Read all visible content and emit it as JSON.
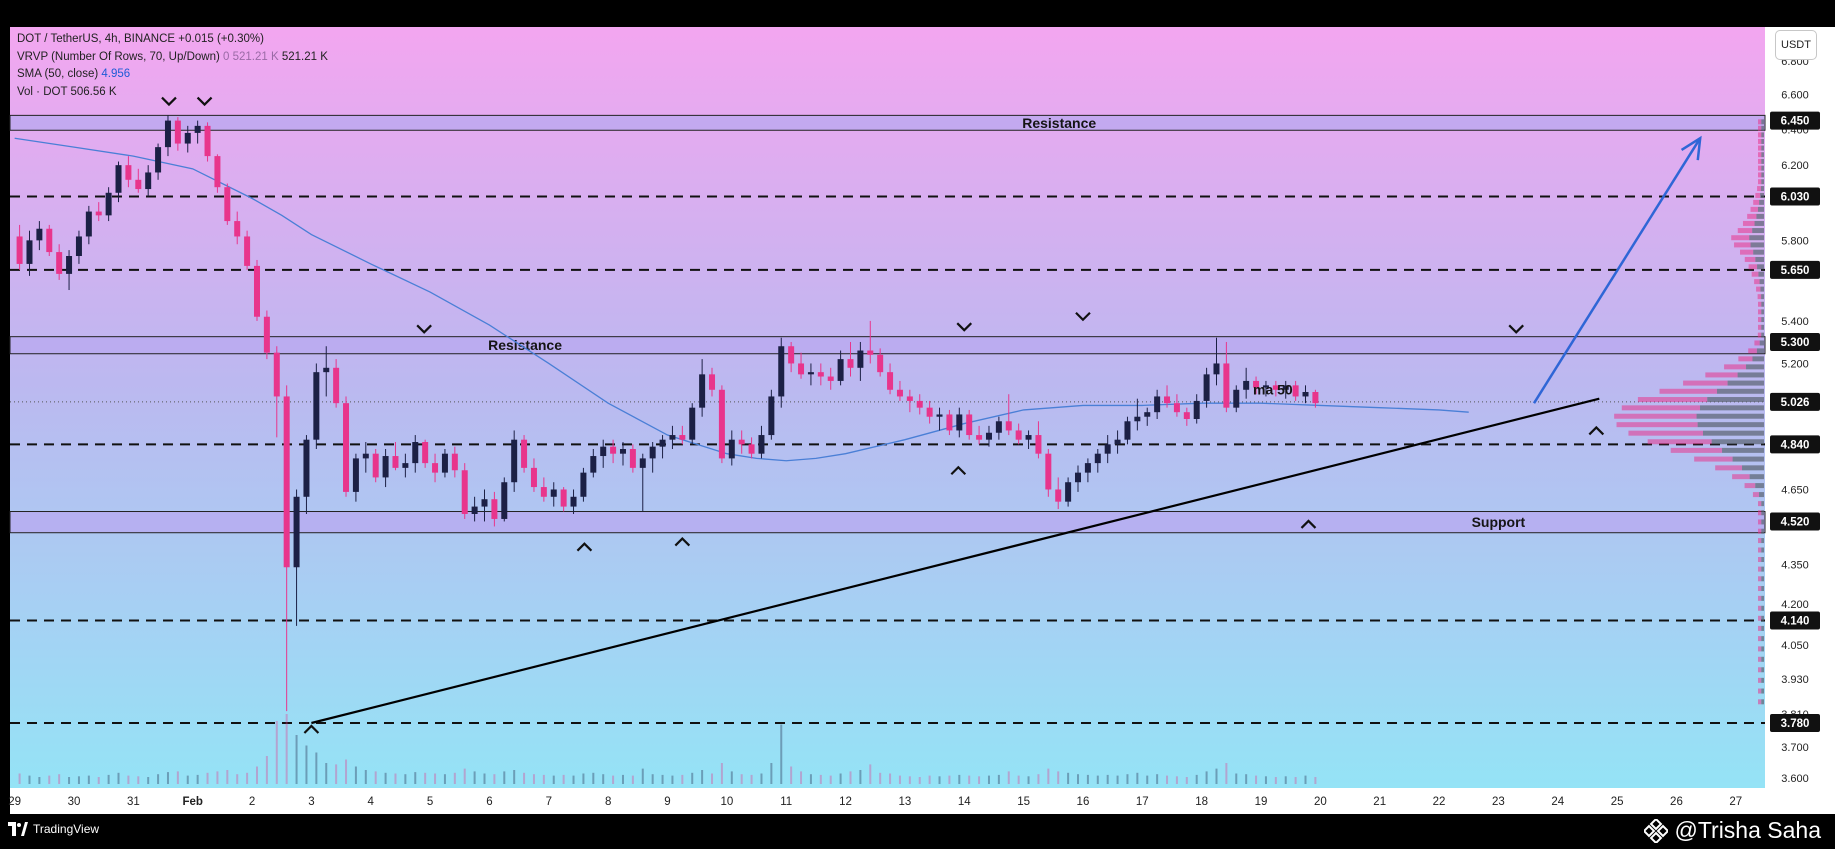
{
  "legend": {
    "line1": "DOT / TetherUS, 4h, BINANCE  +0.015 (+0.30%)",
    "vrvp_label": "VRVP (Number Of Rows, 70, Up/Down)",
    "vrvp_v1": "0",
    "vrvp_v2": "521.21 K",
    "vrvp_v3": "521.21 K",
    "sma_label": "SMA (50, close)",
    "sma_value": "4.956",
    "vol_label": "Vol · DOT",
    "vol_value": "506.56 K"
  },
  "currency_button": "USDT",
  "footer": {
    "brand": "TradingView",
    "author": "@Trisha Saha"
  },
  "colors": {
    "bull": "#1c2045",
    "bear": "#e8358c",
    "sma": "#4a7fd6",
    "trendline": "#000000",
    "zone_fill": "#b8a8f0",
    "arrow": "#2f66d6",
    "bg_top": "#f3a6f0",
    "bg_bottom": "#92e6f6"
  },
  "chart_data": {
    "type": "candlestick",
    "symbol": "DOT / TetherUS",
    "interval": "4h",
    "exchange": "BINANCE",
    "y_axis": {
      "min": 3.55,
      "max": 6.9,
      "ticks": [
        "6.800",
        "6.600",
        "6.400",
        "6.200",
        "5.800",
        "5.400",
        "5.200",
        "4.650",
        "4.350",
        "4.200",
        "4.050",
        "3.930",
        "3.810",
        "3.700",
        "3.600"
      ],
      "price_labels": [
        "6.450",
        "6.030",
        "5.650",
        "5.300",
        "5.026",
        "4.840",
        "4.520",
        "4.140",
        "3.780"
      ]
    },
    "x_axis": {
      "labels": [
        "29",
        "30",
        "31",
        "Feb",
        "2",
        "3",
        "4",
        "5",
        "6",
        "7",
        "8",
        "9",
        "10",
        "11",
        "12",
        "13",
        "14",
        "15",
        "16",
        "17",
        "18",
        "19",
        "20",
        "21",
        "22",
        "23",
        "24",
        "25",
        "26",
        "27"
      ],
      "label_day": [
        -1,
        0,
        1,
        2,
        3,
        4,
        5,
        6,
        7,
        8,
        9,
        10,
        11,
        12,
        13,
        14,
        15,
        16,
        17,
        18,
        19,
        20,
        21,
        22,
        23,
        24,
        25,
        26,
        27,
        28
      ]
    },
    "candles_per_day": 6,
    "first_candle_day": -1.0,
    "ohlc": [
      [
        5.82,
        5.88,
        5.65,
        5.68
      ],
      [
        5.68,
        5.85,
        5.62,
        5.8
      ],
      [
        5.8,
        5.9,
        5.75,
        5.86
      ],
      [
        5.86,
        5.88,
        5.72,
        5.74
      ],
      [
        5.74,
        5.78,
        5.6,
        5.63
      ],
      [
        5.63,
        5.75,
        5.55,
        5.72
      ],
      [
        5.72,
        5.85,
        5.68,
        5.82
      ],
      [
        5.82,
        5.98,
        5.78,
        5.95
      ],
      [
        5.95,
        6.0,
        5.9,
        5.93
      ],
      [
        5.93,
        6.08,
        5.9,
        6.05
      ],
      [
        6.05,
        6.22,
        6.0,
        6.2
      ],
      [
        6.2,
        6.25,
        6.08,
        6.12
      ],
      [
        6.12,
        6.18,
        6.05,
        6.07
      ],
      [
        6.07,
        6.2,
        6.03,
        6.16
      ],
      [
        6.16,
        6.32,
        6.12,
        6.3
      ],
      [
        6.3,
        6.48,
        6.25,
        6.45
      ],
      [
        6.45,
        6.47,
        6.28,
        6.32
      ],
      [
        6.32,
        6.42,
        6.27,
        6.38
      ],
      [
        6.38,
        6.45,
        6.32,
        6.42
      ],
      [
        6.42,
        6.44,
        6.22,
        6.25
      ],
      [
        6.25,
        6.26,
        6.05,
        6.08
      ],
      [
        6.08,
        6.1,
        5.88,
        5.9
      ],
      [
        5.9,
        5.95,
        5.78,
        5.82
      ],
      [
        5.82,
        5.85,
        5.65,
        5.67
      ],
      [
        5.67,
        5.7,
        5.4,
        5.42
      ],
      [
        5.42,
        5.45,
        5.22,
        5.25
      ],
      [
        5.25,
        5.28,
        4.87,
        5.05
      ],
      [
        5.05,
        5.1,
        3.82,
        4.34
      ],
      [
        4.34,
        4.65,
        4.12,
        4.62
      ],
      [
        4.62,
        4.88,
        4.55,
        4.86
      ],
      [
        4.86,
        5.2,
        4.82,
        5.16
      ],
      [
        5.16,
        5.28,
        5.05,
        5.18
      ],
      [
        5.18,
        5.22,
        5.0,
        5.02
      ],
      [
        5.02,
        5.05,
        4.62,
        4.64
      ],
      [
        4.64,
        4.8,
        4.6,
        4.78
      ],
      [
        4.78,
        4.85,
        4.72,
        4.8
      ],
      [
        4.8,
        4.82,
        4.68,
        4.7
      ],
      [
        4.7,
        4.82,
        4.66,
        4.79
      ],
      [
        4.79,
        4.85,
        4.73,
        4.74
      ],
      [
        4.74,
        4.8,
        4.7,
        4.76
      ],
      [
        4.76,
        4.88,
        4.72,
        4.85
      ],
      [
        4.85,
        4.86,
        4.74,
        4.76
      ],
      [
        4.76,
        4.8,
        4.68,
        4.72
      ],
      [
        4.72,
        4.82,
        4.7,
        4.8
      ],
      [
        4.8,
        4.83,
        4.7,
        4.73
      ],
      [
        4.73,
        4.76,
        4.53,
        4.55
      ],
      [
        4.55,
        4.62,
        4.52,
        4.58
      ],
      [
        4.58,
        4.65,
        4.52,
        4.61
      ],
      [
        4.61,
        4.64,
        4.5,
        4.53
      ],
      [
        4.53,
        4.7,
        4.52,
        4.68
      ],
      [
        4.68,
        4.9,
        4.64,
        4.86
      ],
      [
        4.86,
        4.88,
        4.72,
        4.74
      ],
      [
        4.74,
        4.78,
        4.64,
        4.66
      ],
      [
        4.66,
        4.7,
        4.6,
        4.62
      ],
      [
        4.62,
        4.68,
        4.58,
        4.65
      ],
      [
        4.65,
        4.66,
        4.56,
        4.58
      ],
      [
        4.58,
        4.65,
        4.55,
        4.62
      ],
      [
        4.62,
        4.74,
        4.6,
        4.72
      ],
      [
        4.72,
        4.82,
        4.7,
        4.79
      ],
      [
        4.79,
        4.86,
        4.74,
        4.83
      ],
      [
        4.83,
        4.86,
        4.76,
        4.8
      ],
      [
        4.8,
        4.85,
        4.75,
        4.82
      ],
      [
        4.82,
        4.84,
        4.72,
        4.74
      ],
      [
        4.74,
        4.8,
        4.56,
        4.78
      ],
      [
        4.78,
        4.85,
        4.72,
        4.83
      ],
      [
        4.83,
        4.88,
        4.78,
        4.86
      ],
      [
        4.86,
        4.92,
        4.82,
        4.88
      ],
      [
        4.88,
        4.92,
        4.84,
        4.86
      ],
      [
        4.86,
        5.02,
        4.84,
        5.0
      ],
      [
        5.0,
        5.22,
        4.96,
        5.15
      ],
      [
        5.15,
        5.18,
        5.05,
        5.08
      ],
      [
        5.08,
        5.1,
        4.76,
        4.78
      ],
      [
        4.78,
        4.9,
        4.75,
        4.86
      ],
      [
        4.86,
        4.9,
        4.8,
        4.84
      ],
      [
        4.84,
        4.87,
        4.78,
        4.8
      ],
      [
        4.8,
        4.92,
        4.78,
        4.88
      ],
      [
        4.88,
        5.08,
        4.86,
        5.05
      ],
      [
        5.05,
        5.32,
        5.0,
        5.28
      ],
      [
        5.28,
        5.3,
        5.16,
        5.2
      ],
      [
        5.2,
        5.25,
        5.13,
        5.15
      ],
      [
        5.15,
        5.2,
        5.1,
        5.16
      ],
      [
        5.16,
        5.2,
        5.1,
        5.14
      ],
      [
        5.14,
        5.18,
        5.08,
        5.12
      ],
      [
        5.12,
        5.26,
        5.1,
        5.22
      ],
      [
        5.22,
        5.3,
        5.14,
        5.18
      ],
      [
        5.18,
        5.3,
        5.12,
        5.26
      ],
      [
        5.26,
        5.4,
        5.2,
        5.24
      ],
      [
        5.24,
        5.27,
        5.14,
        5.16
      ],
      [
        5.16,
        5.2,
        5.06,
        5.08
      ],
      [
        5.08,
        5.12,
        5.03,
        5.05
      ],
      [
        5.05,
        5.08,
        4.98,
        5.03
      ],
      [
        5.03,
        5.06,
        4.97,
        5.0
      ],
      [
        5.0,
        5.03,
        4.93,
        4.96
      ],
      [
        4.96,
        5.0,
        4.9,
        4.97
      ],
      [
        4.97,
        4.99,
        4.88,
        4.9
      ],
      [
        4.9,
        5.0,
        4.87,
        4.97
      ],
      [
        4.97,
        4.99,
        4.86,
        4.88
      ],
      [
        4.88,
        4.92,
        4.84,
        4.86
      ],
      [
        4.86,
        4.92,
        4.83,
        4.89
      ],
      [
        4.89,
        4.96,
        4.86,
        4.94
      ],
      [
        4.94,
        5.06,
        4.88,
        4.9
      ],
      [
        4.9,
        4.93,
        4.84,
        4.86
      ],
      [
        4.86,
        4.9,
        4.82,
        4.88
      ],
      [
        4.88,
        4.94,
        4.78,
        4.8
      ],
      [
        4.8,
        4.82,
        4.62,
        4.65
      ],
      [
        4.65,
        4.7,
        4.57,
        4.6
      ],
      [
        4.6,
        4.7,
        4.58,
        4.68
      ],
      [
        4.68,
        4.75,
        4.64,
        4.72
      ],
      [
        4.72,
        4.78,
        4.68,
        4.76
      ],
      [
        4.76,
        4.82,
        4.72,
        4.8
      ],
      [
        4.8,
        4.88,
        4.76,
        4.84
      ],
      [
        4.84,
        4.9,
        4.8,
        4.86
      ],
      [
        4.86,
        4.96,
        4.84,
        4.94
      ],
      [
        4.94,
        5.04,
        4.9,
        4.96
      ],
      [
        4.96,
        5.0,
        4.92,
        4.98
      ],
      [
        4.98,
        5.08,
        4.95,
        5.05
      ],
      [
        5.05,
        5.1,
        5.0,
        5.02
      ],
      [
        5.02,
        5.06,
        4.96,
        4.98
      ],
      [
        4.98,
        5.0,
        4.92,
        4.95
      ],
      [
        4.95,
        5.06,
        4.93,
        5.03
      ],
      [
        5.03,
        5.18,
        5.0,
        5.15
      ],
      [
        5.15,
        5.32,
        5.1,
        5.2
      ],
      [
        5.2,
        5.3,
        4.98,
        5.0
      ],
      [
        5.0,
        5.1,
        4.98,
        5.08
      ],
      [
        5.08,
        5.18,
        5.04,
        5.12
      ],
      [
        5.12,
        5.14,
        5.06,
        5.09
      ],
      [
        5.09,
        5.12,
        5.05,
        5.1
      ],
      [
        5.1,
        5.12,
        5.05,
        5.08
      ],
      [
        5.08,
        5.12,
        5.04,
        5.1
      ],
      [
        5.1,
        5.12,
        5.03,
        5.05
      ],
      [
        5.05,
        5.1,
        5.02,
        5.07
      ],
      [
        5.07,
        5.08,
        5.0,
        5.02
      ]
    ],
    "volume": [
      0.15,
      0.12,
      0.1,
      0.12,
      0.14,
      0.1,
      0.11,
      0.12,
      0.1,
      0.13,
      0.16,
      0.12,
      0.11,
      0.1,
      0.14,
      0.17,
      0.18,
      0.12,
      0.13,
      0.16,
      0.18,
      0.2,
      0.14,
      0.16,
      0.25,
      0.4,
      0.9,
      1.0,
      0.7,
      0.55,
      0.45,
      0.3,
      0.28,
      0.35,
      0.25,
      0.2,
      0.18,
      0.16,
      0.15,
      0.14,
      0.17,
      0.16,
      0.15,
      0.14,
      0.16,
      0.22,
      0.18,
      0.15,
      0.14,
      0.18,
      0.2,
      0.16,
      0.14,
      0.13,
      0.12,
      0.13,
      0.12,
      0.15,
      0.16,
      0.14,
      0.12,
      0.13,
      0.12,
      0.22,
      0.14,
      0.13,
      0.12,
      0.13,
      0.16,
      0.2,
      0.15,
      0.3,
      0.18,
      0.14,
      0.13,
      0.15,
      0.3,
      0.85,
      0.25,
      0.18,
      0.14,
      0.13,
      0.12,
      0.15,
      0.18,
      0.2,
      0.28,
      0.16,
      0.15,
      0.12,
      0.11,
      0.1,
      0.12,
      0.11,
      0.12,
      0.13,
      0.12,
      0.11,
      0.12,
      0.13,
      0.18,
      0.12,
      0.11,
      0.14,
      0.22,
      0.18,
      0.16,
      0.14,
      0.13,
      0.12,
      0.13,
      0.12,
      0.14,
      0.16,
      0.12,
      0.14,
      0.12,
      0.11,
      0.1,
      0.13,
      0.18,
      0.22,
      0.3,
      0.15,
      0.14,
      0.12,
      0.11,
      0.1,
      0.11,
      0.1,
      0.12,
      0.1
    ],
    "sma50": [
      [
        -1.0,
        6.35
      ],
      [
        0.0,
        6.3
      ],
      [
        1.0,
        6.25
      ],
      [
        2.0,
        6.18
      ],
      [
        3.0,
        6.02
      ],
      [
        3.5,
        5.93
      ],
      [
        4.0,
        5.83
      ],
      [
        5.0,
        5.68
      ],
      [
        6.0,
        5.54
      ],
      [
        7.0,
        5.38
      ],
      [
        8.0,
        5.2
      ],
      [
        9.0,
        5.02
      ],
      [
        10.0,
        4.88
      ],
      [
        11.0,
        4.8
      ],
      [
        11.5,
        4.78
      ],
      [
        12.0,
        4.77
      ],
      [
        12.5,
        4.78
      ],
      [
        13.0,
        4.8
      ],
      [
        14.0,
        4.86
      ],
      [
        15.0,
        4.93
      ],
      [
        16.0,
        4.99
      ],
      [
        17.0,
        5.01
      ],
      [
        18.0,
        5.01
      ],
      [
        19.0,
        5.02
      ],
      [
        20.0,
        5.02
      ],
      [
        21.0,
        5.01
      ],
      [
        22.0,
        5.0
      ],
      [
        23.0,
        4.99
      ],
      [
        23.5,
        4.98
      ]
    ],
    "horizontal_levels": [
      {
        "price": 6.03,
        "label": "6.030"
      },
      {
        "price": 5.65,
        "label": "5.650"
      },
      {
        "price": 4.84,
        "label": "4.840"
      },
      {
        "price": 4.14,
        "label": "4.140"
      },
      {
        "price": 3.78,
        "label": "3.780"
      }
    ],
    "zones": [
      {
        "top": 6.48,
        "bottom": 6.395,
        "label": "Resistance",
        "label_day": 16.6,
        "price_label": "6.450"
      },
      {
        "top": 5.325,
        "bottom": 5.245,
        "label": "Resistance",
        "label_day": 7.6,
        "price_label": "5.300"
      },
      {
        "top": 4.56,
        "bottom": 4.475,
        "label": "Support",
        "label_day": 24.0,
        "price_label": "4.520"
      }
    ],
    "current_price": {
      "price": 5.026,
      "label": "5.026"
    },
    "trendline": {
      "from": [
        4.0,
        3.78
      ],
      "to": [
        25.7,
        5.04
      ]
    },
    "projection_arrow": {
      "from": [
        24.6,
        5.02
      ],
      "to": [
        27.4,
        6.35
      ]
    },
    "annotations": [
      {
        "text": "ma 50",
        "day": 20.2,
        "price": 5.04
      }
    ],
    "marks_down": [
      [
        1.6,
        6.56
      ],
      [
        2.2,
        6.56
      ],
      [
        5.9,
        5.36
      ],
      [
        15.0,
        5.37
      ],
      [
        17.0,
        5.42
      ],
      [
        24.3,
        5.36
      ]
    ],
    "marks_up": [
      [
        4.0,
        3.76
      ],
      [
        8.6,
        4.42
      ],
      [
        10.25,
        4.44
      ],
      [
        14.9,
        4.73
      ],
      [
        20.8,
        4.51
      ],
      [
        25.65,
        4.9
      ]
    ]
  }
}
